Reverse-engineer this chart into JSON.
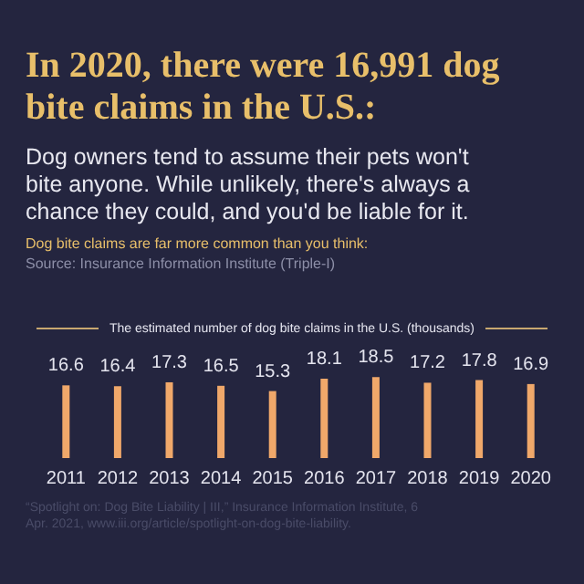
{
  "chart_data": {
    "type": "bar",
    "title": "In 2020, there were 16,991 dog bite claims in the U.S.:",
    "subtitle": "Dog owners tend to assume their pets won't bite anyone. While unlikely, there's always a chance they could, and you'd be liable for it.",
    "ylabel": "The estimated number of dog bite claims in the U.S. (thousands)",
    "annotations": [
      "Dog bite claims are far more common than you think:",
      "Source: Insurance Information Institute (Triple-I)",
      "“Spotlight on: Dog Bite Liability | III,” Insurance Information Institute, 6 Apr. 2021, www.iii.org/article/spotlight-on-dog-bite-liability."
    ],
    "categories": [
      "2011",
      "2012",
      "2013",
      "2014",
      "2015",
      "2016",
      "2017",
      "2018",
      "2019",
      "2020"
    ],
    "values": [
      16.6,
      16.4,
      17.3,
      16.5,
      15.3,
      18.1,
      18.5,
      17.2,
      17.8,
      16.9
    ],
    "color": "#f0a86a",
    "ylim": [
      0,
      20
    ],
    "data_labels": true
  }
}
